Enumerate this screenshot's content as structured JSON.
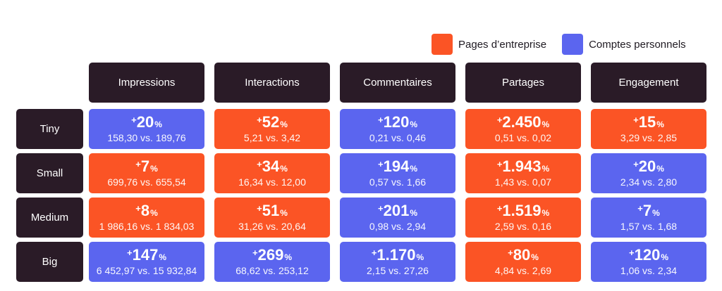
{
  "legend": {
    "company": {
      "label": "Pages d’entreprise",
      "color": "#fb5425"
    },
    "personal": {
      "label": "Comptes personnels",
      "color": "#5b65ef"
    }
  },
  "chart_data": {
    "type": "table",
    "columns": [
      "Impressions",
      "Interactions",
      "Commentaires",
      "Partages",
      "Engagement"
    ],
    "rows": [
      {
        "label": "Tiny",
        "cells": [
          {
            "value": "20",
            "comparison": "158,30 vs. 189,76",
            "winner": "personal"
          },
          {
            "value": "52",
            "comparison": "5,21 vs. 3,42",
            "winner": "company"
          },
          {
            "value": "120",
            "comparison": "0,21 vs. 0,46",
            "winner": "personal"
          },
          {
            "value": "2.450",
            "comparison": "0,51 vs. 0,02",
            "winner": "company"
          },
          {
            "value": "15",
            "comparison": "3,29 vs. 2,85",
            "winner": "company"
          }
        ]
      },
      {
        "label": "Small",
        "cells": [
          {
            "value": "7",
            "comparison": "699,76 vs. 655,54",
            "winner": "company"
          },
          {
            "value": "34",
            "comparison": "16,34 vs. 12,00",
            "winner": "company"
          },
          {
            "value": "194",
            "comparison": "0,57 vs. 1,66",
            "winner": "personal"
          },
          {
            "value": "1.943",
            "comparison": "1,43 vs. 0,07",
            "winner": "company"
          },
          {
            "value": "20",
            "comparison": "2,34 vs. 2,80",
            "winner": "personal"
          }
        ]
      },
      {
        "label": "Medium",
        "cells": [
          {
            "value": "8",
            "comparison": "1 986,16 vs. 1 834,03",
            "winner": "company"
          },
          {
            "value": "51",
            "comparison": "31,26 vs. 20,64",
            "winner": "company"
          },
          {
            "value": "201",
            "comparison": "0,98 vs. 2,94",
            "winner": "personal"
          },
          {
            "value": "1.519",
            "comparison": "2,59 vs. 0,16",
            "winner": "company"
          },
          {
            "value": "7",
            "comparison": "1,57 vs. 1,68",
            "winner": "personal"
          }
        ]
      },
      {
        "label": "Big",
        "cells": [
          {
            "value": "147",
            "comparison": "6 452,97 vs. 15 932,84",
            "winner": "personal"
          },
          {
            "value": "269",
            "comparison": "68,62 vs. 253,12",
            "winner": "personal"
          },
          {
            "value": "1.170",
            "comparison": "2,15 vs. 27,26",
            "winner": "personal"
          },
          {
            "value": "80",
            "comparison": "4,84 vs. 2,69",
            "winner": "company"
          },
          {
            "value": "120",
            "comparison": "1,06 vs. 2,34",
            "winner": "personal"
          }
        ]
      }
    ]
  }
}
